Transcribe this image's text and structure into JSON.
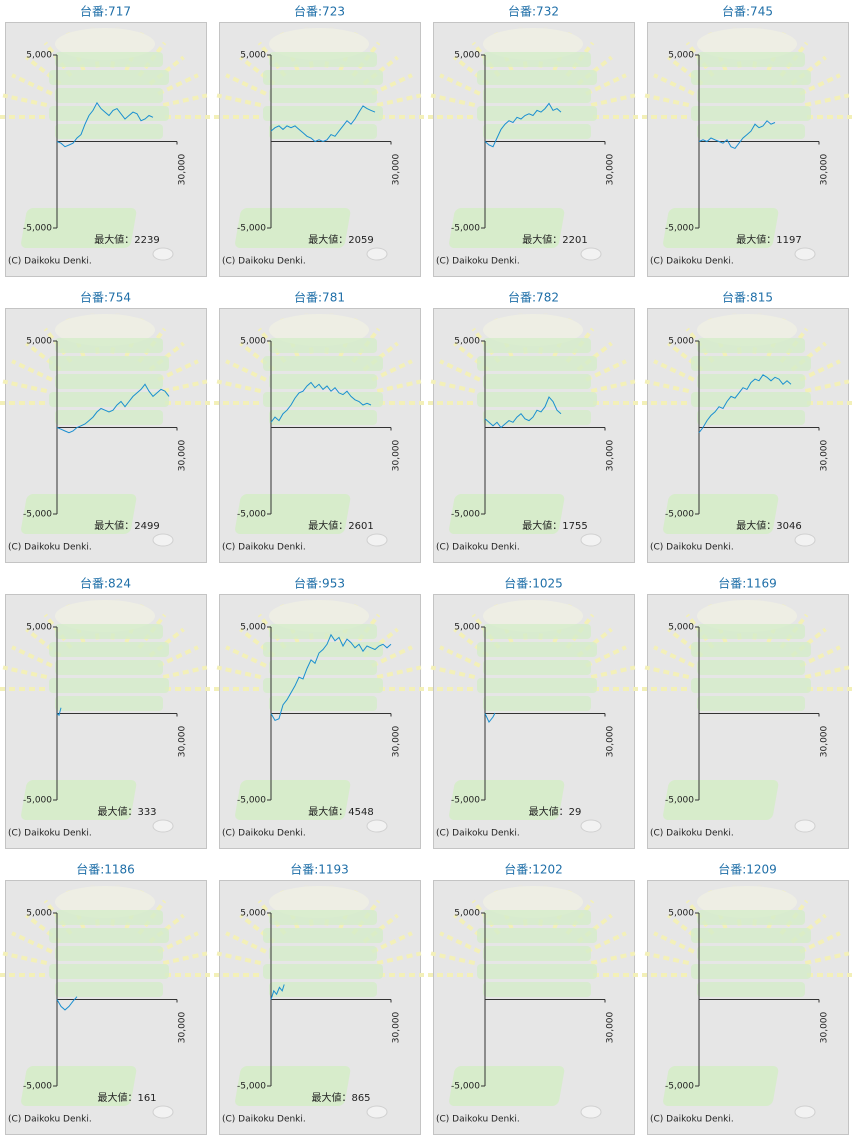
{
  "chart_data": [
    {
      "type": "line",
      "title": "台番:717",
      "annotation": "最大値：2239",
      "copyright": "(C) Daikoku Denki.",
      "color": "#1a8fd0",
      "xlim": [
        0,
        30000
      ],
      "xticks": [
        {
          "value": 30000,
          "label": "30,000"
        }
      ],
      "ylim": [
        -5000,
        5000
      ],
      "yticks": [
        {
          "value": 5000,
          "label": "5,000"
        },
        {
          "value": -5000,
          "label": "-5,000"
        }
      ],
      "x": [
        0,
        1000,
        2000,
        3000,
        4000,
        5000,
        6000,
        7000,
        8000,
        9000,
        10000,
        11000,
        12000,
        13000,
        14000,
        15000,
        16000,
        17000,
        18000,
        19000,
        20000,
        21000,
        22000,
        23000,
        24000
      ],
      "values": [
        0,
        -100,
        -300,
        -200,
        -100,
        200,
        400,
        1000,
        1500,
        1800,
        2239,
        1900,
        1700,
        1500,
        1800,
        1900,
        1600,
        1300,
        1500,
        1700,
        1600,
        1200,
        1300,
        1500,
        1400
      ]
    },
    {
      "type": "line",
      "title": "台番:723",
      "annotation": "最大値：2059",
      "copyright": "(C) Daikoku Denki.",
      "color": "#1a8fd0",
      "xlim": [
        0,
        30000
      ],
      "xticks": [
        {
          "value": 30000,
          "label": "30,000"
        }
      ],
      "ylim": [
        -5000,
        5000
      ],
      "yticks": [
        {
          "value": 5000,
          "label": "5,000"
        },
        {
          "value": -5000,
          "label": "-5,000"
        }
      ],
      "x": [
        0,
        1000,
        2000,
        3000,
        4000,
        5000,
        6000,
        7000,
        8000,
        9000,
        10000,
        11000,
        12000,
        13000,
        14000,
        15000,
        16000,
        17000,
        18000,
        19000,
        20000,
        21000,
        22000,
        23000,
        24000,
        25000,
        26000
      ],
      "values": [
        600,
        800,
        900,
        700,
        900,
        800,
        900,
        700,
        500,
        300,
        200,
        0,
        100,
        0,
        100,
        400,
        300,
        600,
        900,
        1200,
        1000,
        1300,
        1700,
        2059,
        1900,
        1800,
        1700
      ]
    },
    {
      "type": "line",
      "title": "台番:732",
      "annotation": "最大値：2201",
      "copyright": "(C) Daikoku Denki.",
      "color": "#1a8fd0",
      "xlim": [
        0,
        30000
      ],
      "xticks": [
        {
          "value": 30000,
          "label": "30,000"
        }
      ],
      "ylim": [
        -5000,
        5000
      ],
      "yticks": [
        {
          "value": 5000,
          "label": "5,000"
        },
        {
          "value": -5000,
          "label": "-5,000"
        }
      ],
      "x": [
        0,
        1000,
        2000,
        3000,
        4000,
        5000,
        6000,
        7000,
        8000,
        9000,
        10000,
        11000,
        12000,
        13000,
        14000,
        15000,
        16000,
        17000,
        18000,
        19000
      ],
      "values": [
        0,
        -200,
        -300,
        200,
        700,
        1000,
        1200,
        1100,
        1400,
        1300,
        1500,
        1600,
        1500,
        1800,
        1700,
        1900,
        2201,
        1800,
        1900,
        1700
      ]
    },
    {
      "type": "line",
      "title": "台番:745",
      "annotation": "最大値：1197",
      "copyright": "(C) Daikoku Denki.",
      "color": "#1a8fd0",
      "xlim": [
        0,
        30000
      ],
      "xticks": [
        {
          "value": 30000,
          "label": "30,000"
        }
      ],
      "ylim": [
        -5000,
        5000
      ],
      "yticks": [
        {
          "value": 5000,
          "label": "5,000"
        },
        {
          "value": -5000,
          "label": "-5,000"
        }
      ],
      "x": [
        0,
        1000,
        2000,
        3000,
        4000,
        5000,
        6000,
        7000,
        8000,
        9000,
        10000,
        11000,
        12000,
        13000,
        14000,
        15000,
        16000,
        17000,
        18000,
        19000
      ],
      "values": [
        0,
        100,
        0,
        200,
        100,
        0,
        -100,
        100,
        -300,
        -400,
        -100,
        200,
        400,
        600,
        1000,
        800,
        900,
        1197,
        1000,
        1100
      ]
    },
    {
      "type": "line",
      "title": "台番:754",
      "annotation": "最大値：2499",
      "copyright": "(C) Daikoku Denki.",
      "color": "#1a8fd0",
      "xlim": [
        0,
        30000
      ],
      "xticks": [
        {
          "value": 30000,
          "label": "30,000"
        }
      ],
      "ylim": [
        -5000,
        5000
      ],
      "yticks": [
        {
          "value": 5000,
          "label": "5,000"
        },
        {
          "value": -5000,
          "label": "-5,000"
        }
      ],
      "x": [
        0,
        1000,
        2000,
        3000,
        4000,
        5000,
        6000,
        7000,
        8000,
        9000,
        10000,
        11000,
        12000,
        13000,
        14000,
        15000,
        16000,
        17000,
        18000,
        19000,
        20000,
        21000,
        22000,
        23000,
        24000,
        25000,
        26000,
        27000,
        28000
      ],
      "values": [
        0,
        -100,
        -200,
        -300,
        -200,
        0,
        100,
        200,
        400,
        600,
        900,
        1100,
        1000,
        900,
        1000,
        1300,
        1500,
        1200,
        1500,
        1800,
        2000,
        2200,
        2499,
        2100,
        1800,
        2000,
        2200,
        2100,
        1800
      ]
    },
    {
      "type": "line",
      "title": "台番:781",
      "annotation": "最大値：2601",
      "copyright": "(C) Daikoku Denki.",
      "color": "#1a8fd0",
      "xlim": [
        0,
        30000
      ],
      "xticks": [
        {
          "value": 30000,
          "label": "30,000"
        }
      ],
      "ylim": [
        -5000,
        5000
      ],
      "yticks": [
        {
          "value": 5000,
          "label": "5,000"
        },
        {
          "value": -5000,
          "label": "-5,000"
        }
      ],
      "x": [
        0,
        1000,
        2000,
        3000,
        4000,
        5000,
        6000,
        7000,
        8000,
        9000,
        10000,
        11000,
        12000,
        13000,
        14000,
        15000,
        16000,
        17000,
        18000,
        19000,
        20000,
        21000,
        22000,
        23000,
        24000,
        25000
      ],
      "values": [
        300,
        600,
        400,
        800,
        1000,
        1300,
        1700,
        2000,
        2100,
        2400,
        2601,
        2300,
        2500,
        2200,
        2400,
        2100,
        2300,
        2000,
        1900,
        2100,
        1800,
        1600,
        1500,
        1300,
        1400,
        1300
      ]
    },
    {
      "type": "line",
      "title": "台番:782",
      "annotation": "最大値：1755",
      "copyright": "(C) Daikoku Denki.",
      "color": "#1a8fd0",
      "xlim": [
        0,
        30000
      ],
      "xticks": [
        {
          "value": 30000,
          "label": "30,000"
        }
      ],
      "ylim": [
        -5000,
        5000
      ],
      "yticks": [
        {
          "value": 5000,
          "label": "5,000"
        },
        {
          "value": -5000,
          "label": "-5,000"
        }
      ],
      "x": [
        0,
        1000,
        2000,
        3000,
        4000,
        5000,
        6000,
        7000,
        8000,
        9000,
        10000,
        11000,
        12000,
        13000,
        14000,
        15000,
        16000,
        17000,
        18000,
        19000
      ],
      "values": [
        500,
        300,
        100,
        300,
        0,
        200,
        400,
        300,
        600,
        800,
        500,
        400,
        600,
        1000,
        900,
        1200,
        1755,
        1500,
        1000,
        800
      ]
    },
    {
      "type": "line",
      "title": "台番:815",
      "annotation": "最大値：3046",
      "copyright": "(C) Daikoku Denki.",
      "color": "#1a8fd0",
      "xlim": [
        0,
        30000
      ],
      "xticks": [
        {
          "value": 30000,
          "label": "30,000"
        }
      ],
      "ylim": [
        -5000,
        5000
      ],
      "yticks": [
        {
          "value": 5000,
          "label": "5,000"
        },
        {
          "value": -5000,
          "label": "-5,000"
        }
      ],
      "x": [
        0,
        1000,
        2000,
        3000,
        4000,
        5000,
        6000,
        7000,
        8000,
        9000,
        10000,
        11000,
        12000,
        13000,
        14000,
        15000,
        16000,
        17000,
        18000,
        19000,
        20000,
        21000,
        22000,
        23000
      ],
      "values": [
        -300,
        0,
        400,
        700,
        900,
        1200,
        1100,
        1500,
        1800,
        1700,
        2000,
        2300,
        2200,
        2600,
        2800,
        2700,
        3046,
        2900,
        2700,
        2900,
        2800,
        2500,
        2700,
        2500
      ]
    },
    {
      "type": "line",
      "title": "台番:824",
      "annotation": "最大値：333",
      "copyright": "(C) Daikoku Denki.",
      "color": "#1a8fd0",
      "xlim": [
        0,
        30000
      ],
      "xticks": [
        {
          "value": 30000,
          "label": "30,000"
        }
      ],
      "ylim": [
        -5000,
        5000
      ],
      "yticks": [
        {
          "value": 5000,
          "label": "5,000"
        },
        {
          "value": -5000,
          "label": "-5,000"
        }
      ],
      "x": [
        0,
        500,
        1000
      ],
      "values": [
        0,
        -100,
        333
      ]
    },
    {
      "type": "line",
      "title": "台番:953",
      "annotation": "最大値：4548",
      "copyright": "(C) Daikoku Denki.",
      "color": "#1a8fd0",
      "xlim": [
        0,
        30000
      ],
      "xticks": [
        {
          "value": 30000,
          "label": "30,000"
        }
      ],
      "ylim": [
        -5000,
        5000
      ],
      "yticks": [
        {
          "value": 5000,
          "label": "5,000"
        },
        {
          "value": -5000,
          "label": "-5,000"
        }
      ],
      "x": [
        0,
        1000,
        2000,
        3000,
        4000,
        5000,
        6000,
        7000,
        8000,
        9000,
        10000,
        11000,
        12000,
        13000,
        14000,
        15000,
        16000,
        17000,
        18000,
        19000,
        20000,
        21000,
        22000,
        23000,
        24000,
        25000,
        26000,
        27000,
        28000,
        29000,
        30000
      ],
      "values": [
        0,
        -400,
        -300,
        500,
        800,
        1200,
        1600,
        2100,
        2000,
        2600,
        3100,
        2900,
        3500,
        3700,
        4000,
        4548,
        4200,
        4400,
        3900,
        4300,
        4100,
        3800,
        4000,
        3600,
        3900,
        3800,
        3700,
        3900,
        4000,
        3800,
        4000
      ]
    },
    {
      "type": "line",
      "title": "台番:1025",
      "annotation": "最大値：29",
      "copyright": "(C) Daikoku Denki.",
      "color": "#1a8fd0",
      "xlim": [
        0,
        30000
      ],
      "xticks": [
        {
          "value": 30000,
          "label": "30,000"
        }
      ],
      "ylim": [
        -5000,
        5000
      ],
      "yticks": [
        {
          "value": 5000,
          "label": "5,000"
        },
        {
          "value": -5000,
          "label": "-5,000"
        }
      ],
      "x": [
        0,
        1000,
        2000,
        2500
      ],
      "values": [
        0,
        -500,
        -200,
        29
      ]
    },
    {
      "type": "line",
      "title": "台番:1169",
      "copyright": "(C) Daikoku Denki.",
      "color": "#1a8fd0",
      "xlim": [
        0,
        30000
      ],
      "xticks": [
        {
          "value": 30000,
          "label": "30,000"
        }
      ],
      "ylim": [
        -5000,
        5000
      ],
      "yticks": [
        {
          "value": 5000,
          "label": "5,000"
        },
        {
          "value": -5000,
          "label": "-5,000"
        }
      ],
      "x": [],
      "values": []
    },
    {
      "type": "line",
      "title": "台番:1186",
      "annotation": "最大値：161",
      "copyright": "(C) Daikoku Denki.",
      "color": "#1a8fd0",
      "xlim": [
        0,
        30000
      ],
      "xticks": [
        {
          "value": 30000,
          "label": "30,000"
        }
      ],
      "ylim": [
        -5000,
        5000
      ],
      "yticks": [
        {
          "value": 5000,
          "label": "5,000"
        },
        {
          "value": -5000,
          "label": "-5,000"
        }
      ],
      "x": [
        0,
        1000,
        2000,
        3000,
        4000,
        5000
      ],
      "values": [
        0,
        -400,
        -600,
        -400,
        -100,
        161
      ]
    },
    {
      "type": "line",
      "title": "台番:1193",
      "annotation": "最大値：865",
      "copyright": "(C) Daikoku Denki.",
      "color": "#1a8fd0",
      "xlim": [
        0,
        30000
      ],
      "xticks": [
        {
          "value": 30000,
          "label": "30,000"
        }
      ],
      "ylim": [
        -5000,
        5000
      ],
      "yticks": [
        {
          "value": 5000,
          "label": "5,000"
        },
        {
          "value": -5000,
          "label": "-5,000"
        }
      ],
      "x": [
        0,
        700,
        1400,
        2100,
        2800,
        3300
      ],
      "values": [
        0,
        500,
        300,
        700,
        500,
        865
      ]
    },
    {
      "type": "line",
      "title": "台番:1202",
      "copyright": "(C) Daikoku Denki.",
      "color": "#1a8fd0",
      "xlim": [
        0,
        30000
      ],
      "xticks": [
        {
          "value": 30000,
          "label": "30,000"
        }
      ],
      "ylim": [
        -5000,
        5000
      ],
      "yticks": [
        {
          "value": 5000,
          "label": "5,000"
        },
        {
          "value": -5000,
          "label": "-5,000"
        }
      ],
      "x": [],
      "values": []
    },
    {
      "type": "line",
      "title": "台番:1209",
      "copyright": "(C) Daikoku Denki.",
      "color": "#1a8fd0",
      "xlim": [
        0,
        30000
      ],
      "xticks": [
        {
          "value": 30000,
          "label": "30,000"
        }
      ],
      "ylim": [
        -5000,
        5000
      ],
      "yticks": [
        {
          "value": 5000,
          "label": "5,000"
        },
        {
          "value": -5000,
          "label": "-5,000"
        }
      ],
      "x": [],
      "values": []
    }
  ]
}
